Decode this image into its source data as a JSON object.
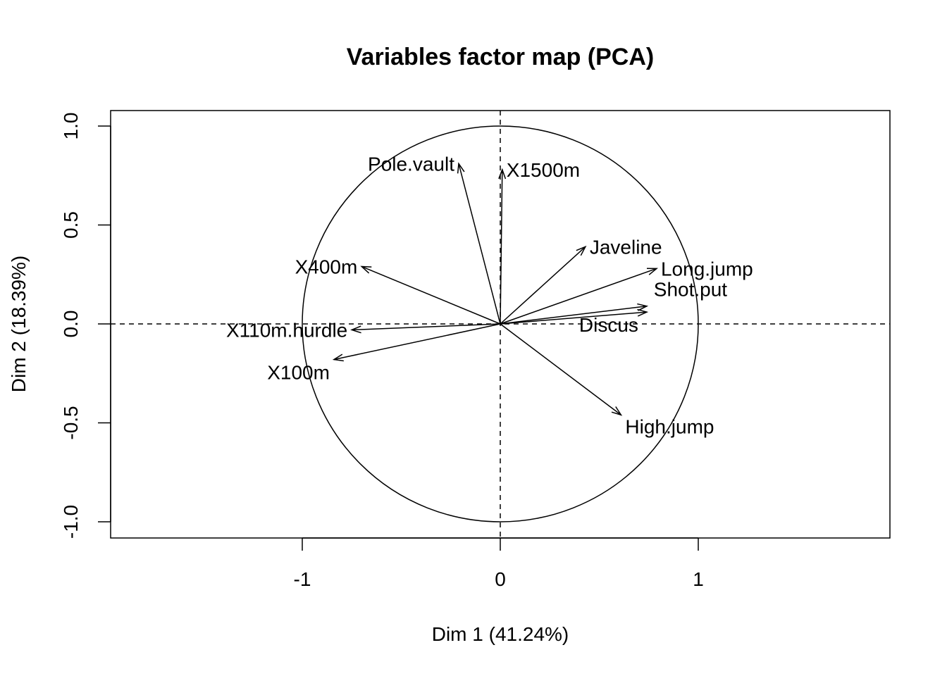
{
  "chart_data": {
    "type": "scatter",
    "title": "Variables factor map (PCA)",
    "xlabel": "Dim 1 (41.24%)",
    "ylabel": "Dim 2 (18.39%)",
    "xlim": [
      -1.98,
      1.98
    ],
    "ylim": [
      -1.08,
      1.08
    ],
    "xticks": [
      -1,
      0,
      1
    ],
    "xtick_labels": [
      "-1",
      "0",
      "1"
    ],
    "yticks": [
      -1.0,
      -0.5,
      0.0,
      0.5,
      1.0
    ],
    "ytick_labels": [
      "-1.0",
      "-0.5",
      "0.0",
      "0.5",
      "1.0"
    ],
    "grid": false,
    "reference_lines": "dashed lines at x = 0 and y = 0",
    "unit_circle": true,
    "variables": [
      {
        "name": "Pole.vault",
        "x": -0.21,
        "y": 0.81,
        "label_pos": "left"
      },
      {
        "name": "X1500m",
        "x": 0.01,
        "y": 0.78,
        "label_pos": "right"
      },
      {
        "name": "Javeline",
        "x": 0.43,
        "y": 0.39,
        "label_pos": "right"
      },
      {
        "name": "Long.jump",
        "x": 0.79,
        "y": 0.28,
        "label_pos": "right"
      },
      {
        "name": "Shot.put",
        "x": 0.74,
        "y": 0.09,
        "label_pos": "above"
      },
      {
        "name": "Discus",
        "x": 0.74,
        "y": 0.06,
        "label_pos": "below"
      },
      {
        "name": "X400m",
        "x": -0.7,
        "y": 0.29,
        "label_pos": "left"
      },
      {
        "name": "X110m.hurdle",
        "x": -0.75,
        "y": -0.03,
        "label_pos": "left"
      },
      {
        "name": "X100m",
        "x": -0.84,
        "y": -0.18,
        "label_pos": "below-left"
      },
      {
        "name": "High.jump",
        "x": 0.61,
        "y": -0.46,
        "label_pos": "below-right"
      }
    ]
  }
}
